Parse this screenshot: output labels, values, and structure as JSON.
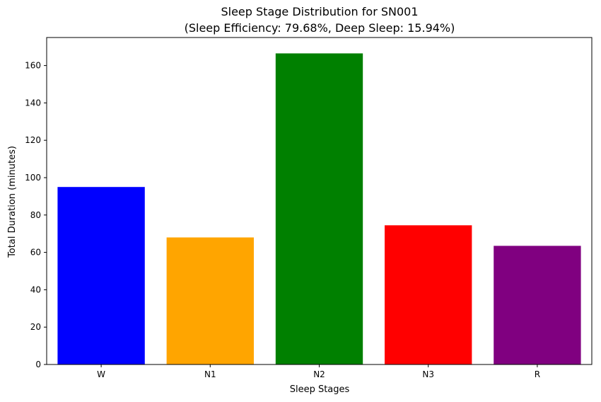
{
  "chart_data": {
    "type": "bar",
    "title": "Sleep Stage Distribution for SN001",
    "subtitle": "(Sleep Efficiency: 79.68%, Deep Sleep: 15.94%)",
    "xlabel": "Sleep Stages",
    "ylabel": "Total Duration (minutes)",
    "categories": [
      "W",
      "N1",
      "N2",
      "N3",
      "R"
    ],
    "values": [
      95,
      68,
      166.5,
      74.5,
      63.5
    ],
    "colors": [
      "#0000ff",
      "#ffa500",
      "#008000",
      "#ff0000",
      "#800080"
    ],
    "ylim": [
      0,
      175
    ],
    "yticks": [
      0,
      20,
      40,
      60,
      80,
      100,
      120,
      140,
      160
    ],
    "grid": false,
    "legend": "none"
  }
}
